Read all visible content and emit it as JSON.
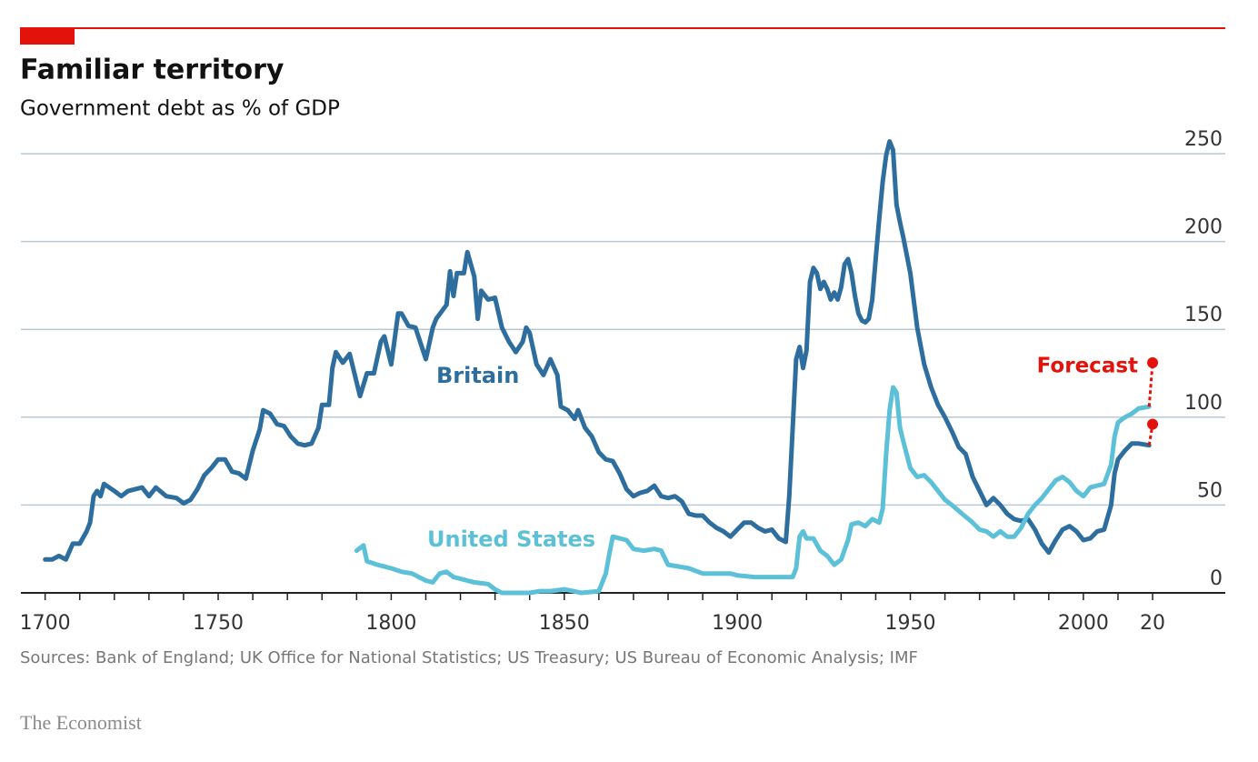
{
  "chart_data": {
    "type": "line",
    "title": "Familiar territory",
    "subtitle": "Government debt as % of GDP",
    "source": "Sources: Bank of England; UK Office for National Statistics; US Treasury; US Bureau of Economic Analysis; IMF",
    "brand": "The Economist",
    "xlim": [
      1693,
      2041
    ],
    "ylim": [
      0,
      250
    ],
    "xticks": [
      1700,
      1750,
      1800,
      1850,
      1900,
      1950,
      2000,
      {
        "value": 2020,
        "label": "20"
      }
    ],
    "xminorticks": [
      1710,
      1720,
      1730,
      1740,
      1760,
      1770,
      1780,
      1790,
      1810,
      1820,
      1830,
      1840,
      1860,
      1870,
      1880,
      1890,
      1910,
      1920,
      1930,
      1940,
      1960,
      1970,
      1980,
      1990,
      2010
    ],
    "yticks": [
      0,
      50,
      100,
      150,
      200,
      250
    ],
    "grid": true,
    "series": [
      {
        "name": "Britain",
        "color": "#2e6e9e",
        "x": [
          1700,
          1702,
          1704,
          1706,
          1708,
          1710,
          1712,
          1713,
          1714,
          1715,
          1716,
          1717,
          1720,
          1722,
          1724,
          1728,
          1730,
          1732,
          1735,
          1738,
          1740,
          1742,
          1744,
          1746,
          1748,
          1750,
          1752,
          1754,
          1756,
          1758,
          1760,
          1762,
          1763,
          1765,
          1767,
          1769,
          1771,
          1773,
          1775,
          1777,
          1779,
          1780,
          1782,
          1783,
          1784,
          1786,
          1788,
          1790,
          1791,
          1793,
          1795,
          1797,
          1798,
          1800,
          1802,
          1803,
          1805,
          1807,
          1808,
          1810,
          1812,
          1813,
          1816,
          1817,
          1818,
          1819,
          1821,
          1822,
          1824,
          1825,
          1826,
          1828,
          1830,
          1832,
          1834,
          1836,
          1838,
          1839,
          1840,
          1842,
          1844,
          1846,
          1848,
          1849,
          1851,
          1853,
          1854,
          1856,
          1858,
          1860,
          1862,
          1864,
          1866,
          1868,
          1870,
          1872,
          1874,
          1876,
          1878,
          1880,
          1882,
          1884,
          1886,
          1888,
          1890,
          1892,
          1894,
          1896,
          1898,
          1900,
          1902,
          1904,
          1906,
          1908,
          1910,
          1912,
          1914,
          1915,
          1916,
          1917,
          1918,
          1919,
          1920,
          1921,
          1922,
          1923,
          1924,
          1925,
          1926,
          1927,
          1928,
          1929,
          1930,
          1931,
          1932,
          1933,
          1934,
          1935,
          1936,
          1937,
          1938,
          1939,
          1940,
          1941,
          1942,
          1943,
          1944,
          1945,
          1946,
          1947,
          1948,
          1950,
          1952,
          1954,
          1956,
          1958,
          1960,
          1962,
          1964,
          1966,
          1968,
          1970,
          1972,
          1974,
          1976,
          1978,
          1980,
          1982,
          1984,
          1986,
          1988,
          1990,
          1992,
          1994,
          1996,
          1998,
          2000,
          2002,
          2004,
          2006,
          2008,
          2009,
          2010,
          2012,
          2014,
          2016,
          2019
        ],
        "values": [
          19,
          19,
          21,
          19,
          28,
          28,
          35,
          40,
          55,
          58,
          55,
          62,
          58,
          55,
          58,
          60,
          55,
          60,
          55,
          54,
          51,
          53,
          59,
          67,
          71,
          76,
          76,
          69,
          68,
          65,
          81,
          93,
          104,
          102,
          96,
          95,
          89,
          85,
          84,
          85,
          94,
          107,
          107,
          128,
          137,
          131,
          136,
          120,
          112,
          125,
          125,
          143,
          146,
          130,
          159,
          159,
          152,
          151,
          145,
          133,
          151,
          156,
          164,
          183,
          169,
          182,
          182,
          194,
          180,
          156,
          172,
          167,
          168,
          151,
          143,
          137,
          143,
          151,
          148,
          130,
          124,
          133,
          124,
          106,
          104,
          99,
          104,
          94,
          89,
          80,
          76,
          75,
          68,
          59,
          55,
          57,
          58,
          61,
          55,
          54,
          55,
          52,
          45,
          44,
          44,
          40,
          37,
          35,
          32,
          36,
          40,
          40,
          37,
          35,
          36,
          31,
          29,
          55,
          94,
          133,
          140,
          128,
          138,
          177,
          185,
          182,
          173,
          177,
          173,
          167,
          171,
          167,
          174,
          187,
          190,
          182,
          169,
          159,
          155,
          154,
          156,
          167,
          190,
          213,
          234,
          249,
          257,
          252,
          221,
          211,
          202,
          182,
          151,
          130,
          117,
          107,
          100,
          92,
          83,
          79,
          66,
          58,
          50,
          54,
          50,
          45,
          42,
          41,
          42,
          36,
          28,
          23,
          30,
          36,
          38,
          35,
          30,
          31,
          35,
          36,
          50,
          68,
          76,
          81,
          85,
          85,
          84
        ]
      },
      {
        "name": "United States",
        "color": "#5bc0d8",
        "x": [
          1790,
          1792,
          1793,
          1796,
          1800,
          1803,
          1806,
          1810,
          1812,
          1814,
          1816,
          1818,
          1820,
          1824,
          1828,
          1830,
          1832,
          1836,
          1840,
          1843,
          1846,
          1850,
          1855,
          1860,
          1862,
          1863,
          1864,
          1866,
          1868,
          1870,
          1873,
          1876,
          1878,
          1880,
          1883,
          1886,
          1890,
          1894,
          1898,
          1900,
          1905,
          1910,
          1912,
          1916,
          1917,
          1918,
          1919,
          1920,
          1922,
          1924,
          1926,
          1928,
          1930,
          1932,
          1933,
          1935,
          1937,
          1939,
          1941,
          1942,
          1943,
          1944,
          1945,
          1946,
          1947,
          1948,
          1950,
          1952,
          1954,
          1956,
          1958,
          1960,
          1962,
          1965,
          1968,
          1970,
          1972,
          1974,
          1976,
          1978,
          1980,
          1982,
          1984,
          1986,
          1988,
          1990,
          1992,
          1994,
          1996,
          1998,
          2000,
          2002,
          2004,
          2006,
          2008,
          2009,
          2010,
          2012,
          2014,
          2016,
          2019
        ],
        "values": [
          24,
          27,
          18,
          16,
          14,
          12,
          11,
          7,
          6,
          11,
          12,
          9,
          8,
          6,
          5,
          2,
          0,
          0,
          0,
          1,
          1,
          2,
          0,
          1,
          11,
          22,
          32,
          31,
          30,
          25,
          24,
          25,
          24,
          16,
          15,
          14,
          11,
          11,
          11,
          10,
          9,
          9,
          9,
          9,
          14,
          32,
          35,
          31,
          31,
          24,
          21,
          16,
          19,
          30,
          39,
          40,
          38,
          42,
          40,
          48,
          79,
          104,
          117,
          114,
          94,
          86,
          71,
          66,
          67,
          63,
          58,
          53,
          50,
          45,
          40,
          36,
          35,
          32,
          35,
          32,
          32,
          37,
          45,
          50,
          54,
          59,
          64,
          66,
          63,
          58,
          55,
          60,
          61,
          62,
          73,
          89,
          97,
          100,
          102,
          105,
          106
        ]
      }
    ],
    "forecast": {
      "label": "Forecast",
      "color": "#e3120b",
      "x": [
        2020,
        2020
      ],
      "values": [
        96,
        131
      ]
    }
  }
}
